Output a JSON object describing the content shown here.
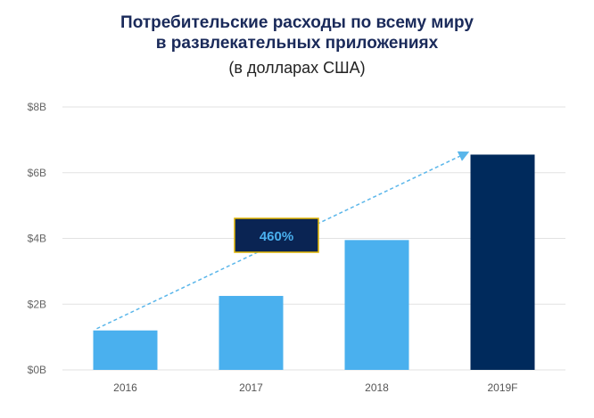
{
  "title_line1": "Потребительские расходы по всему миру",
  "title_line2": "в развлекательных приложениях",
  "subtitle": "(в долларах США)",
  "annotation": "460%",
  "colors": {
    "actual": "#4ab0ee",
    "forecast": "#002a5c",
    "annotation_bg": "#0a2453",
    "annotation_border": "#e0b400",
    "grid": "#e2e2e2",
    "arrow": "#5ab6ea"
  },
  "chart_data": {
    "type": "bar",
    "categories": [
      "2016",
      "2017",
      "2018",
      "2019F"
    ],
    "values": [
      1.2,
      2.25,
      3.95,
      6.55
    ],
    "yticks": [
      "$0B",
      "$2B",
      "$4B",
      "$6B",
      "$8B"
    ],
    "ylim": [
      0,
      8
    ],
    "grid": true,
    "legend": "none"
  }
}
